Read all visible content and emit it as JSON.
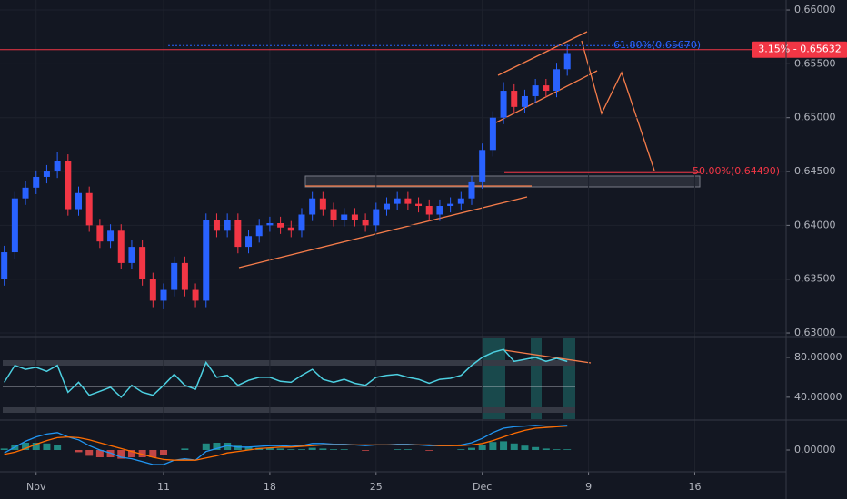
{
  "chart_data": [
    {
      "type": "candlestick",
      "up_color": "#2962ff",
      "down_color": "#f23645",
      "x": [
        -1.5,
        -1,
        -0.5,
        0,
        0.5,
        1,
        1.5,
        2,
        2.5,
        3,
        3.5,
        4,
        4.5,
        5,
        5.5,
        6,
        6.5,
        7,
        7.5,
        8,
        8.5,
        9,
        9.5,
        10,
        10.5,
        11,
        11.5,
        12,
        12.5,
        13,
        13.5,
        14,
        14.5,
        15,
        15.5,
        16,
        16.5,
        17,
        17.5,
        18,
        18.5,
        19,
        19.5,
        20,
        20.5,
        21,
        21.5,
        22,
        22.5,
        23,
        23.5,
        24,
        24.5,
        25
      ],
      "open": [
        0.635,
        0.6375,
        0.6425,
        0.6435,
        0.6445,
        0.645,
        0.646,
        0.6415,
        0.643,
        0.64,
        0.6385,
        0.6395,
        0.6365,
        0.638,
        0.635,
        0.633,
        0.634,
        0.6365,
        0.634,
        0.633,
        0.6405,
        0.6395,
        0.6405,
        0.638,
        0.639,
        0.64,
        0.6402,
        0.6398,
        0.6395,
        0.641,
        0.6425,
        0.6415,
        0.6405,
        0.641,
        0.6405,
        0.64,
        0.6415,
        0.642,
        0.6425,
        0.642,
        0.6418,
        0.641,
        0.6418,
        0.642,
        0.6425,
        0.644,
        0.647,
        0.65,
        0.6525,
        0.651,
        0.652,
        0.653,
        0.6525,
        0.6545
      ],
      "high": [
        0.6381,
        0.6431,
        0.6441,
        0.6451,
        0.6456,
        0.6468,
        0.6466,
        0.6436,
        0.6436,
        0.6406,
        0.6401,
        0.6401,
        0.6386,
        0.6386,
        0.6356,
        0.6346,
        0.6371,
        0.6371,
        0.6346,
        0.6411,
        0.6411,
        0.6411,
        0.6411,
        0.6396,
        0.6406,
        0.6408,
        0.6408,
        0.6404,
        0.6416,
        0.6431,
        0.6431,
        0.6421,
        0.6416,
        0.6416,
        0.6411,
        0.6421,
        0.6426,
        0.6431,
        0.6431,
        0.6426,
        0.6424,
        0.6424,
        0.6426,
        0.6431,
        0.6446,
        0.6476,
        0.6506,
        0.6533,
        0.6531,
        0.6526,
        0.6536,
        0.6536,
        0.6551,
        0.6568
      ],
      "low": [
        0.6344,
        0.6369,
        0.6419,
        0.6429,
        0.6439,
        0.6444,
        0.6409,
        0.6409,
        0.6394,
        0.6379,
        0.6379,
        0.6359,
        0.6359,
        0.6344,
        0.6324,
        0.6322,
        0.6334,
        0.6334,
        0.6324,
        0.6324,
        0.6389,
        0.6389,
        0.6374,
        0.6374,
        0.6384,
        0.6394,
        0.6392,
        0.6389,
        0.6389,
        0.6404,
        0.6409,
        0.6399,
        0.6399,
        0.6399,
        0.6394,
        0.6394,
        0.6409,
        0.6414,
        0.6414,
        0.6412,
        0.6404,
        0.6404,
        0.6412,
        0.6414,
        0.6419,
        0.6434,
        0.6464,
        0.6494,
        0.6504,
        0.6504,
        0.6514,
        0.6519,
        0.6519,
        0.6539
      ],
      "close": [
        0.6375,
        0.6425,
        0.6435,
        0.6445,
        0.645,
        0.646,
        0.6415,
        0.643,
        0.64,
        0.6385,
        0.6395,
        0.6365,
        0.638,
        0.635,
        0.633,
        0.634,
        0.6365,
        0.634,
        0.633,
        0.6405,
        0.6395,
        0.6405,
        0.638,
        0.639,
        0.64,
        0.6402,
        0.6398,
        0.6395,
        0.641,
        0.6425,
        0.6415,
        0.6405,
        0.641,
        0.6405,
        0.64,
        0.6415,
        0.642,
        0.6425,
        0.642,
        0.6418,
        0.641,
        0.6418,
        0.642,
        0.6425,
        0.644,
        0.647,
        0.65,
        0.6525,
        0.651,
        0.652,
        0.653,
        0.6525,
        0.6545,
        0.656
      ],
      "xlim": [
        -1.7,
        35.3
      ],
      "xticks": [
        {
          "value": 0,
          "label": "Nov"
        },
        {
          "value": 6,
          "label": "11"
        },
        {
          "value": 11,
          "label": "18"
        },
        {
          "value": 16,
          "label": "25"
        },
        {
          "value": 21,
          "label": "Dec"
        },
        {
          "value": 26,
          "label": "9"
        },
        {
          "value": 31,
          "label": "16"
        }
      ],
      "ylim": [
        0.62975,
        0.66093
      ],
      "yticks": [
        {
          "value": 0.63,
          "label": "0.63000"
        },
        {
          "value": 0.635,
          "label": "0.63500"
        },
        {
          "value": 0.64,
          "label": "0.64000"
        },
        {
          "value": 0.645,
          "label": "0.64500"
        },
        {
          "value": 0.65,
          "label": "0.65000"
        },
        {
          "value": 0.655,
          "label": "0.65500"
        },
        {
          "value": 0.66,
          "label": "0.66000"
        }
      ],
      "last_price": {
        "value": 0.65632,
        "label": "3.15% - 0.65632",
        "color": "#f23645"
      },
      "levels": [
        {
          "value": 0.6567,
          "label": "61.80%(0.65670)",
          "color": "#2962ff"
        },
        {
          "value": 0.6449,
          "label": "50.00%(0.64490)",
          "color": "#f23645"
        }
      ]
    },
    {
      "type": "line",
      "series": [
        {
          "color": "#4dd0e1",
          "values": [
            55,
            72,
            68,
            70,
            66,
            72,
            45,
            55,
            42,
            46,
            50,
            40,
            52,
            45,
            42,
            52,
            63,
            52,
            48,
            75,
            60,
            62,
            52,
            57,
            60,
            60,
            56,
            55,
            62,
            68,
            58,
            55,
            58,
            54,
            52,
            60,
            62,
            63,
            60,
            58,
            54,
            58,
            59,
            62,
            72,
            80,
            85,
            88,
            76,
            78,
            80,
            76,
            79,
            76
          ]
        }
      ],
      "ylim": [
        18,
        100
      ],
      "yticks": [
        {
          "value": 40,
          "label": "40.00000"
        },
        {
          "value": 80,
          "label": "80.00000"
        }
      ]
    },
    {
      "type": "macd",
      "series": [
        {
          "color": "#2196f3",
          "values": [
            -0.0004,
            0.0004,
            0.0012,
            0.0018,
            0.0022,
            0.0024,
            0.0018,
            0.0014,
            0.0006,
            0.0,
            -0.0004,
            -0.001,
            -0.0012,
            -0.0016,
            -0.002,
            -0.002,
            -0.0014,
            -0.0012,
            -0.0014,
            -0.0002,
            0.0002,
            0.0006,
            0.0004,
            0.0004,
            0.0005,
            0.0006,
            0.0006,
            0.0005,
            0.0006,
            0.0009,
            0.0009,
            0.0008,
            0.0008,
            0.0007,
            0.0006,
            0.0007,
            0.0007,
            0.0008,
            0.0008,
            0.0007,
            0.0006,
            0.0006,
            0.0006,
            0.0007,
            0.001,
            0.0016,
            0.0024,
            0.003,
            0.0032,
            0.0033,
            0.0034,
            0.0033,
            0.0033,
            0.0034
          ]
        },
        {
          "color": "#ff6d00",
          "values": [
            -0.0006,
            -0.0003,
            0.0002,
            0.0008,
            0.0013,
            0.0017,
            0.0018,
            0.0017,
            0.0014,
            0.001,
            0.0006,
            0.0002,
            -0.0002,
            -0.0006,
            -0.001,
            -0.0013,
            -0.0014,
            -0.0014,
            -0.0014,
            -0.0011,
            -0.0008,
            -0.0004,
            -0.0002,
            0.0,
            0.0002,
            0.0003,
            0.0004,
            0.0004,
            0.0005,
            0.0006,
            0.0007,
            0.0007,
            0.0007,
            0.0007,
            0.0007,
            0.0007,
            0.0007,
            0.0007,
            0.0007,
            0.0007,
            0.0007,
            0.0006,
            0.0006,
            0.0006,
            0.0007,
            0.0009,
            0.0013,
            0.0018,
            0.0023,
            0.0027,
            0.003,
            0.0031,
            0.0032,
            0.0033
          ]
        }
      ],
      "histogram": {
        "up_color": "#26a69a",
        "down_color": "#ef5350",
        "values": [
          0.0002,
          0.0007,
          0.001,
          0.001,
          0.0009,
          0.0007,
          0.0,
          -0.0003,
          -0.0008,
          -0.001,
          -0.001,
          -0.0012,
          -0.001,
          -0.001,
          -0.001,
          -0.0007,
          0.0,
          0.0002,
          0.0,
          0.0009,
          0.001,
          0.001,
          0.0006,
          0.0004,
          0.0003,
          0.0003,
          0.0002,
          0.0001,
          0.0001,
          0.0003,
          0.0002,
          0.0001,
          0.0001,
          0.0,
          -0.0001,
          0.0,
          0.0,
          0.0001,
          0.0001,
          0.0,
          -0.0001,
          0.0,
          0.0,
          0.0001,
          0.0003,
          0.0007,
          0.0011,
          0.0012,
          0.0009,
          0.0006,
          0.0004,
          0.0002,
          0.0001,
          0.0001
        ]
      },
      "ylim": [
        -0.003,
        0.004
      ],
      "yticks": [
        {
          "value": 0,
          "label": "0.00000"
        }
      ]
    }
  ]
}
